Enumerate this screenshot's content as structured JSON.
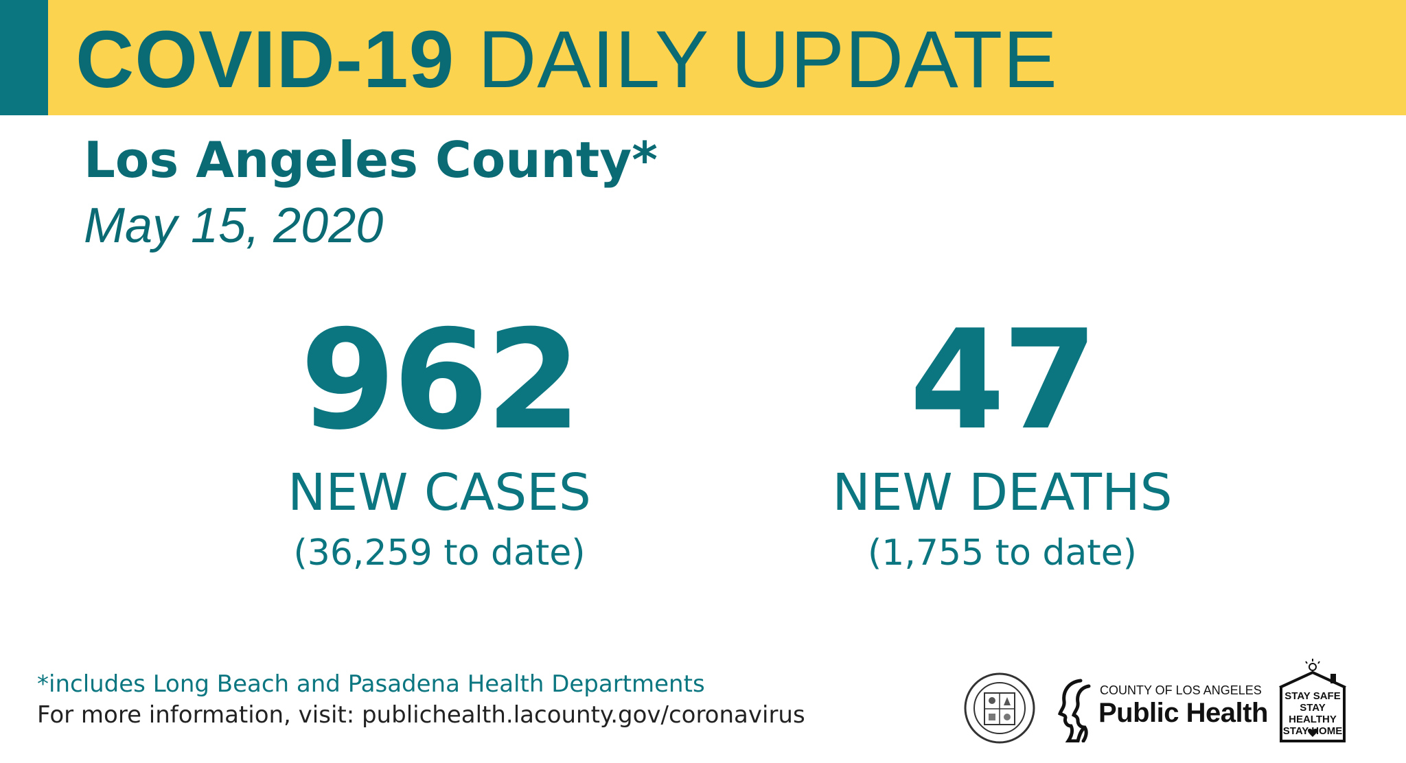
{
  "banner": {
    "title_bold": "COVID-19",
    "title_rest": "DAILY UPDATE",
    "background_color": "#fcd34f",
    "stripe_color": "#0b7680"
  },
  "location": "Los Angeles County*",
  "date": "May 15, 2020",
  "stats": {
    "cases": {
      "number": "962",
      "label": "NEW CASES",
      "to_date": "(36,259 to date)"
    },
    "deaths": {
      "number": "47",
      "label": "NEW DEATHS",
      "to_date": "(1,755 to date)"
    }
  },
  "footer": {
    "footnote": "*includes Long Beach and Pasadena Health Departments",
    "more_info": "For more information, visit: publichealth.lacounty.gov/coronavirus"
  },
  "logos": {
    "seal_icon": "county-seal-icon",
    "public_health": {
      "top_line": "COUNTY OF LOS ANGELES",
      "main_line": "Public Health"
    },
    "stay_safe": {
      "line1": "STAY SAFE",
      "line2": "STAY HEALTHY",
      "line3": "STAY HOME"
    }
  },
  "colors": {
    "teal": "#0b7680",
    "yellow": "#fcd34f",
    "dark_text": "#222222"
  }
}
